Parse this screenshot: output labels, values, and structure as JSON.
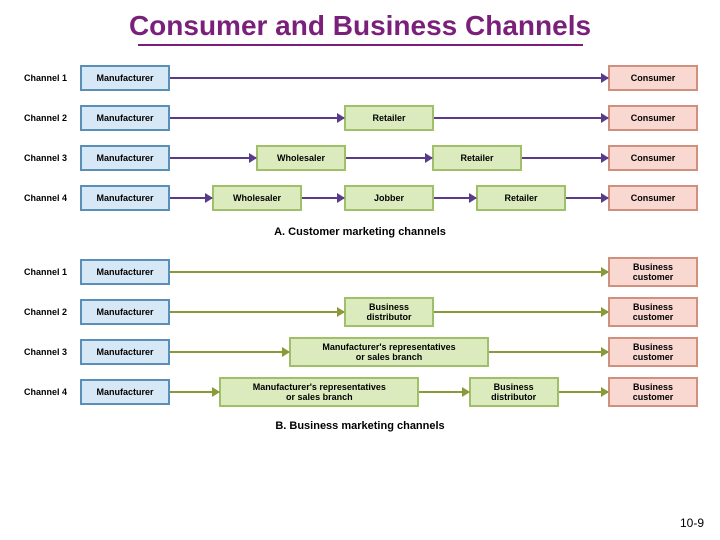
{
  "title": {
    "text": "Consumer and Business Channels",
    "color": "#7a1f7a",
    "font_size": 28,
    "underline_width": 445
  },
  "page_number": "10-9",
  "layout": {
    "track_width": 596,
    "box_colors": {
      "manufacturer": {
        "bg": "#d6e7f5",
        "border": "#5a8fb8"
      },
      "intermediary": {
        "bg": "#dcebbd",
        "border": "#9fbf69"
      },
      "endpoint": {
        "bg": "#f9d8d1",
        "border": "#d18f7e"
      }
    },
    "arrow_colors": {
      "sectionA": "#5a3b8a",
      "sectionB": "#8a9a3a"
    },
    "box_min_width": 90,
    "box_wide_width": 200
  },
  "sections": [
    {
      "id": "A",
      "caption": "A. Customer marketing channels",
      "arrow_color_key": "sectionA",
      "channels": [
        {
          "label": "Channel 1",
          "boxes": [
            {
              "text": "Manufacturer",
              "role": "manufacturer"
            },
            {
              "text": "Consumer",
              "role": "endpoint"
            }
          ]
        },
        {
          "label": "Channel 2",
          "boxes": [
            {
              "text": "Manufacturer",
              "role": "manufacturer"
            },
            {
              "text": "Retailer",
              "role": "intermediary"
            },
            {
              "text": "Consumer",
              "role": "endpoint"
            }
          ]
        },
        {
          "label": "Channel 3",
          "boxes": [
            {
              "text": "Manufacturer",
              "role": "manufacturer"
            },
            {
              "text": "Wholesaler",
              "role": "intermediary"
            },
            {
              "text": "Retailer",
              "role": "intermediary"
            },
            {
              "text": "Consumer",
              "role": "endpoint"
            }
          ]
        },
        {
          "label": "Channel 4",
          "boxes": [
            {
              "text": "Manufacturer",
              "role": "manufacturer"
            },
            {
              "text": "Wholesaler",
              "role": "intermediary"
            },
            {
              "text": "Jobber",
              "role": "intermediary"
            },
            {
              "text": "Retailer",
              "role": "intermediary"
            },
            {
              "text": "Consumer",
              "role": "endpoint"
            }
          ]
        }
      ]
    },
    {
      "id": "B",
      "caption": "B. Business marketing channels",
      "arrow_color_key": "sectionB",
      "channels": [
        {
          "label": "Channel 1",
          "boxes": [
            {
              "text": "Manufacturer",
              "role": "manufacturer"
            },
            {
              "text": "Business\ncustomer",
              "role": "endpoint"
            }
          ]
        },
        {
          "label": "Channel 2",
          "boxes": [
            {
              "text": "Manufacturer",
              "role": "manufacturer"
            },
            {
              "text": "Business\ndistributor",
              "role": "intermediary"
            },
            {
              "text": "Business\ncustomer",
              "role": "endpoint"
            }
          ]
        },
        {
          "label": "Channel 3",
          "boxes": [
            {
              "text": "Manufacturer",
              "role": "manufacturer"
            },
            {
              "text": "Manufacturer's representatives\nor sales branch",
              "role": "intermediary",
              "wide": true
            },
            {
              "text": "Business\ncustomer",
              "role": "endpoint"
            }
          ]
        },
        {
          "label": "Channel 4",
          "boxes": [
            {
              "text": "Manufacturer",
              "role": "manufacturer"
            },
            {
              "text": "Manufacturer's representatives\nor sales branch",
              "role": "intermediary",
              "wide": true
            },
            {
              "text": "Business\ndistributor",
              "role": "intermediary"
            },
            {
              "text": "Business\ncustomer",
              "role": "endpoint"
            }
          ]
        }
      ]
    }
  ]
}
